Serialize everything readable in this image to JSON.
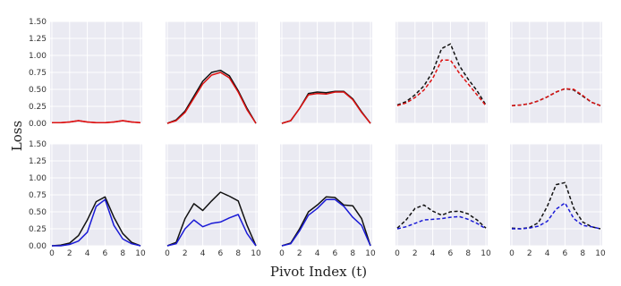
{
  "figure": {
    "ylabel": "Loss",
    "xlabel": "Pivot Index (t)"
  },
  "colors": {
    "black": "#111111",
    "red": "#dd1111",
    "blue": "#1a1ad6",
    "panel_background": "#eaeaf2",
    "grid": "#ffffff"
  },
  "chart_data": [
    {
      "type": "line",
      "row": 1,
      "col": 1,
      "ylim": [
        0,
        1.5
      ],
      "xlim": [
        0,
        10
      ],
      "grid": true,
      "yticks": [
        "0.00",
        "0.25",
        "0.50",
        "0.75",
        "1.00",
        "1.25",
        "1.50"
      ],
      "xticks": [],
      "series": [
        {
          "color": "red",
          "style": "solid",
          "x": [
            0,
            1,
            2,
            3,
            4,
            5,
            6,
            7,
            8,
            9,
            10
          ],
          "y": [
            0.01,
            0.01,
            0.02,
            0.04,
            0.02,
            0.01,
            0.01,
            0.02,
            0.04,
            0.02,
            0.01
          ]
        },
        {
          "color": "red",
          "style": "solid",
          "x": [
            0,
            1,
            2,
            3,
            4,
            5,
            6,
            7,
            8,
            9,
            10
          ],
          "y": [
            0.01,
            0.01,
            0.02,
            0.04,
            0.02,
            0.01,
            0.01,
            0.02,
            0.04,
            0.02,
            0.01
          ]
        }
      ]
    },
    {
      "type": "line",
      "row": 1,
      "col": 2,
      "ylim": [
        0,
        1.5
      ],
      "xlim": [
        0,
        10
      ],
      "grid": true,
      "yticks": [],
      "xticks": [],
      "series": [
        {
          "color": "black",
          "style": "solid",
          "x": [
            0,
            1,
            2,
            3,
            4,
            5,
            6,
            7,
            8,
            9,
            10
          ],
          "y": [
            0.0,
            0.05,
            0.18,
            0.4,
            0.62,
            0.75,
            0.78,
            0.7,
            0.48,
            0.22,
            0.0
          ]
        },
        {
          "color": "red",
          "style": "solid",
          "x": [
            0,
            1,
            2,
            3,
            4,
            5,
            6,
            7,
            8,
            9,
            10
          ],
          "y": [
            0.0,
            0.04,
            0.16,
            0.37,
            0.58,
            0.71,
            0.75,
            0.67,
            0.46,
            0.2,
            0.0
          ]
        }
      ]
    },
    {
      "type": "line",
      "row": 1,
      "col": 3,
      "ylim": [
        0,
        1.5
      ],
      "xlim": [
        0,
        10
      ],
      "grid": true,
      "yticks": [],
      "xticks": [],
      "series": [
        {
          "color": "black",
          "style": "solid",
          "x": [
            0,
            1,
            2,
            3,
            4,
            5,
            6,
            7,
            8,
            9,
            10
          ],
          "y": [
            0.0,
            0.04,
            0.22,
            0.44,
            0.46,
            0.45,
            0.47,
            0.47,
            0.36,
            0.17,
            0.0
          ]
        },
        {
          "color": "red",
          "style": "solid",
          "x": [
            0,
            1,
            2,
            3,
            4,
            5,
            6,
            7,
            8,
            9,
            10
          ],
          "y": [
            0.0,
            0.04,
            0.22,
            0.42,
            0.44,
            0.43,
            0.46,
            0.46,
            0.35,
            0.16,
            0.0
          ]
        }
      ]
    },
    {
      "type": "line",
      "row": 1,
      "col": 4,
      "ylim": [
        0,
        1.5
      ],
      "xlim": [
        0,
        10
      ],
      "grid": true,
      "yticks": [],
      "xticks": [],
      "series": [
        {
          "color": "black",
          "style": "dashed",
          "x": [
            0,
            1,
            2,
            3,
            4,
            5,
            6,
            7,
            8,
            9,
            10
          ],
          "y": [
            0.27,
            0.32,
            0.42,
            0.55,
            0.76,
            1.1,
            1.17,
            0.85,
            0.65,
            0.48,
            0.27
          ]
        },
        {
          "color": "red",
          "style": "dashed",
          "x": [
            0,
            1,
            2,
            3,
            4,
            5,
            6,
            7,
            8,
            9,
            10
          ],
          "y": [
            0.26,
            0.3,
            0.38,
            0.49,
            0.66,
            0.93,
            0.93,
            0.74,
            0.58,
            0.42,
            0.26
          ]
        }
      ]
    },
    {
      "type": "line",
      "row": 1,
      "col": 5,
      "ylim": [
        0,
        1.5
      ],
      "xlim": [
        0,
        10
      ],
      "grid": true,
      "yticks": [],
      "xticks": [],
      "series": [
        {
          "color": "black",
          "style": "dashed",
          "x": [
            0,
            1,
            2,
            3,
            4,
            5,
            6,
            7,
            8,
            9,
            10
          ],
          "y": [
            0.26,
            0.27,
            0.29,
            0.33,
            0.39,
            0.46,
            0.51,
            0.49,
            0.4,
            0.31,
            0.26
          ]
        },
        {
          "color": "red",
          "style": "dashed",
          "x": [
            0,
            1,
            2,
            3,
            4,
            5,
            6,
            7,
            8,
            9,
            10
          ],
          "y": [
            0.26,
            0.27,
            0.29,
            0.33,
            0.39,
            0.46,
            0.51,
            0.5,
            0.41,
            0.31,
            0.26
          ]
        }
      ]
    },
    {
      "type": "line",
      "row": 2,
      "col": 1,
      "ylim": [
        0,
        1.5
      ],
      "xlim": [
        0,
        10
      ],
      "grid": true,
      "yticks": [
        "0.00",
        "0.25",
        "0.50",
        "0.75",
        "1.00",
        "1.25",
        "1.50"
      ],
      "xticks": [
        "0",
        "2",
        "4",
        "6",
        "8",
        "10"
      ],
      "series": [
        {
          "color": "black",
          "style": "solid",
          "x": [
            0,
            1,
            2,
            3,
            4,
            5,
            6,
            7,
            8,
            9,
            10
          ],
          "y": [
            0.0,
            0.01,
            0.04,
            0.15,
            0.38,
            0.65,
            0.72,
            0.42,
            0.18,
            0.05,
            0.0
          ]
        },
        {
          "color": "blue",
          "style": "solid",
          "x": [
            0,
            1,
            2,
            3,
            4,
            5,
            6,
            7,
            8,
            9,
            10
          ],
          "y": [
            0.0,
            0.0,
            0.02,
            0.07,
            0.2,
            0.58,
            0.68,
            0.3,
            0.1,
            0.03,
            0.0
          ]
        }
      ]
    },
    {
      "type": "line",
      "row": 2,
      "col": 2,
      "ylim": [
        0,
        1.5
      ],
      "xlim": [
        0,
        10
      ],
      "grid": true,
      "yticks": [],
      "xticks": [
        "0",
        "2",
        "4",
        "6",
        "8",
        "10"
      ],
      "series": [
        {
          "color": "black",
          "style": "solid",
          "x": [
            0,
            1,
            2,
            3,
            4,
            5,
            6,
            7,
            8,
            9,
            10
          ],
          "y": [
            0.0,
            0.05,
            0.4,
            0.62,
            0.52,
            0.66,
            0.79,
            0.73,
            0.66,
            0.3,
            0.0
          ]
        },
        {
          "color": "blue",
          "style": "solid",
          "x": [
            0,
            1,
            2,
            3,
            4,
            5,
            6,
            7,
            8,
            9,
            10
          ],
          "y": [
            0.0,
            0.03,
            0.25,
            0.38,
            0.28,
            0.33,
            0.35,
            0.41,
            0.46,
            0.18,
            0.0
          ]
        }
      ]
    },
    {
      "type": "line",
      "row": 2,
      "col": 3,
      "ylim": [
        0,
        1.5
      ],
      "xlim": [
        0,
        10
      ],
      "grid": true,
      "yticks": [],
      "xticks": [
        "0",
        "2",
        "4",
        "6",
        "8",
        "10"
      ],
      "series": [
        {
          "color": "black",
          "style": "solid",
          "x": [
            0,
            1,
            2,
            3,
            4,
            5,
            6,
            7,
            8,
            9,
            10
          ],
          "y": [
            0.0,
            0.04,
            0.25,
            0.5,
            0.6,
            0.72,
            0.71,
            0.6,
            0.59,
            0.4,
            0.0
          ]
        },
        {
          "color": "blue",
          "style": "solid",
          "x": [
            0,
            1,
            2,
            3,
            4,
            5,
            6,
            7,
            8,
            9,
            10
          ],
          "y": [
            0.0,
            0.03,
            0.22,
            0.45,
            0.55,
            0.68,
            0.68,
            0.58,
            0.42,
            0.3,
            0.0
          ]
        }
      ]
    },
    {
      "type": "line",
      "row": 2,
      "col": 4,
      "ylim": [
        0,
        1.5
      ],
      "xlim": [
        0,
        10
      ],
      "grid": true,
      "yticks": [],
      "xticks": [
        "0",
        "2",
        "4",
        "6",
        "8",
        "10"
      ],
      "series": [
        {
          "color": "black",
          "style": "dashed",
          "x": [
            0,
            1,
            2,
            3,
            4,
            5,
            6,
            7,
            8,
            9,
            10
          ],
          "y": [
            0.26,
            0.38,
            0.55,
            0.6,
            0.51,
            0.45,
            0.5,
            0.51,
            0.47,
            0.38,
            0.26
          ]
        },
        {
          "color": "blue",
          "style": "dashed",
          "x": [
            0,
            1,
            2,
            3,
            4,
            5,
            6,
            7,
            8,
            9,
            10
          ],
          "y": [
            0.25,
            0.28,
            0.33,
            0.38,
            0.39,
            0.4,
            0.42,
            0.43,
            0.39,
            0.33,
            0.25
          ]
        }
      ]
    },
    {
      "type": "line",
      "row": 2,
      "col": 5,
      "ylim": [
        0,
        1.5
      ],
      "xlim": [
        0,
        10
      ],
      "grid": true,
      "yticks": [],
      "xticks": [
        "0",
        "2",
        "4",
        "6",
        "8",
        "10"
      ],
      "series": [
        {
          "color": "black",
          "style": "dashed",
          "x": [
            0,
            1,
            2,
            3,
            4,
            5,
            6,
            7,
            8,
            9,
            10
          ],
          "y": [
            0.26,
            0.25,
            0.27,
            0.34,
            0.58,
            0.9,
            0.93,
            0.55,
            0.35,
            0.28,
            0.25
          ]
        },
        {
          "color": "blue",
          "style": "dashed",
          "x": [
            0,
            1,
            2,
            3,
            4,
            5,
            6,
            7,
            8,
            9,
            10
          ],
          "y": [
            0.25,
            0.25,
            0.26,
            0.29,
            0.36,
            0.54,
            0.63,
            0.4,
            0.3,
            0.28,
            0.25
          ]
        }
      ]
    }
  ]
}
